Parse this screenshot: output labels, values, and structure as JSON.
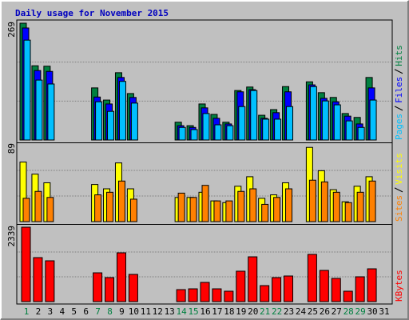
{
  "title": "Daily usage for November 2015",
  "chart_data": [
    {
      "type": "bar",
      "ylim": [
        0,
        269
      ],
      "yticks": [
        269
      ],
      "series": [
        {
          "name": "Hits",
          "color": "#008040",
          "values": [
            269,
            171,
            170,
            0,
            0,
            0,
            120,
            92,
            155,
            107,
            0,
            0,
            0,
            41,
            33,
            83,
            59,
            41,
            114,
            122,
            57,
            70,
            123,
            0,
            134,
            109,
            98,
            61,
            52,
            144,
            0
          ]
        },
        {
          "name": "Files",
          "color": "#0000ff",
          "values": [
            258,
            160,
            158,
            0,
            0,
            0,
            99,
            83,
            144,
            98,
            0,
            0,
            0,
            33,
            29,
            74,
            50,
            37,
            111,
            116,
            50,
            63,
            111,
            0,
            127,
            96,
            88,
            55,
            37,
            120,
            0
          ]
        },
        {
          "name": "Pages",
          "color": "#00c0ff",
          "values": [
            230,
            138,
            129,
            0,
            0,
            0,
            88,
            66,
            135,
            85,
            0,
            0,
            0,
            29,
            24,
            61,
            35,
            33,
            77,
            114,
            48,
            48,
            77,
            0,
            123,
            90,
            81,
            44,
            29,
            92,
            0
          ]
        }
      ]
    },
    {
      "type": "bar",
      "ylim": [
        0,
        89
      ],
      "yticks": [
        89
      ],
      "series": [
        {
          "name": "Visits",
          "color": "#ffff00",
          "values": [
            69,
            55,
            45,
            0,
            0,
            0,
            43,
            38,
            68,
            38,
            0,
            0,
            0,
            28,
            28,
            34,
            24,
            22,
            41,
            52,
            27,
            31,
            45,
            0,
            86,
            59,
            37,
            23,
            41,
            52,
            0
          ]
        },
        {
          "name": "Sites",
          "color": "#ff8000",
          "values": [
            27,
            35,
            28,
            0,
            0,
            0,
            31,
            34,
            47,
            26,
            0,
            0,
            0,
            33,
            28,
            42,
            24,
            24,
            35,
            38,
            20,
            28,
            38,
            0,
            48,
            46,
            34,
            22,
            34,
            47,
            0
          ]
        }
      ]
    },
    {
      "type": "bar",
      "ylim": [
        0,
        2339
      ],
      "yticks": [
        2339
      ],
      "categories": [
        "1",
        "2",
        "3",
        "4",
        "5",
        "6",
        "7",
        "8",
        "9",
        "10",
        "11",
        "12",
        "13",
        "14",
        "15",
        "16",
        "17",
        "18",
        "19",
        "20",
        "21",
        "22",
        "23",
        "24",
        "25",
        "26",
        "27",
        "28",
        "29",
        "30",
        "31"
      ],
      "label_colors": [
        "#008040",
        "#000000",
        "#000000",
        "#000000",
        "#000000",
        "#000000",
        "#008040",
        "#008040",
        "#000000",
        "#000000",
        "#000000",
        "#000000",
        "#000000",
        "#008040",
        "#008040",
        "#000000",
        "#000000",
        "#000000",
        "#000000",
        "#000000",
        "#008040",
        "#008040",
        "#000000",
        "#000000",
        "#000000",
        "#000000",
        "#000000",
        "#008040",
        "#008040",
        "#000000",
        "#000000"
      ],
      "series": [
        {
          "name": "KBytes",
          "color": "#ff0000",
          "values": [
            2339,
            1383,
            1283,
            0,
            0,
            0,
            905,
            755,
            1534,
            855,
            0,
            0,
            0,
            377,
            402,
            604,
            402,
            327,
            956,
            1408,
            503,
            755,
            805,
            0,
            1484,
            981,
            729,
            327,
            780,
            1031,
            0
          ]
        }
      ]
    }
  ]
}
